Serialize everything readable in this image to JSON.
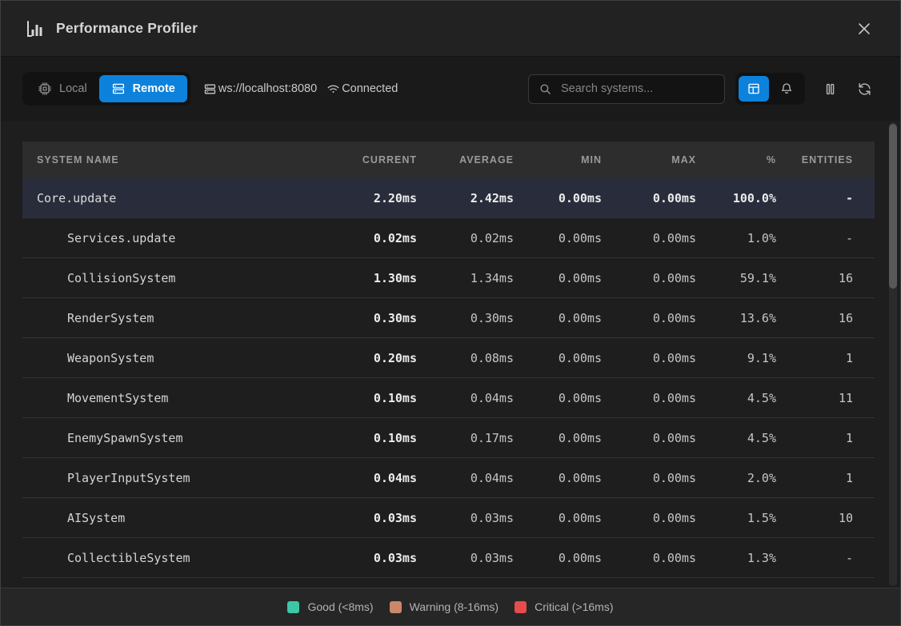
{
  "window": {
    "title": "Performance Profiler"
  },
  "toolbar": {
    "mode_toggle": {
      "local_label": "Local",
      "remote_label": "Remote",
      "active": "Remote"
    },
    "connection": {
      "url": "ws://localhost:8080",
      "status": "Connected"
    },
    "search": {
      "placeholder": "Search systems..."
    }
  },
  "table": {
    "columns": [
      "SYSTEM NAME",
      "CURRENT",
      "AVERAGE",
      "MIN",
      "MAX",
      "%",
      "ENTITIES"
    ],
    "rows": [
      {
        "name": "Core.update",
        "indent": 0,
        "highlighted": true,
        "current": "2.20ms",
        "average": "2.42ms",
        "min": "0.00ms",
        "max": "0.00ms",
        "percent": "100.0%",
        "entities": "-"
      },
      {
        "name": "Services.update",
        "indent": 1,
        "highlighted": false,
        "current": "0.02ms",
        "average": "0.02ms",
        "min": "0.00ms",
        "max": "0.00ms",
        "percent": "1.0%",
        "entities": "-"
      },
      {
        "name": "CollisionSystem",
        "indent": 1,
        "highlighted": false,
        "current": "1.30ms",
        "average": "1.34ms",
        "min": "0.00ms",
        "max": "0.00ms",
        "percent": "59.1%",
        "entities": "16"
      },
      {
        "name": "RenderSystem",
        "indent": 1,
        "highlighted": false,
        "current": "0.30ms",
        "average": "0.30ms",
        "min": "0.00ms",
        "max": "0.00ms",
        "percent": "13.6%",
        "entities": "16"
      },
      {
        "name": "WeaponSystem",
        "indent": 1,
        "highlighted": false,
        "current": "0.20ms",
        "average": "0.08ms",
        "min": "0.00ms",
        "max": "0.00ms",
        "percent": "9.1%",
        "entities": "1"
      },
      {
        "name": "MovementSystem",
        "indent": 1,
        "highlighted": false,
        "current": "0.10ms",
        "average": "0.04ms",
        "min": "0.00ms",
        "max": "0.00ms",
        "percent": "4.5%",
        "entities": "11"
      },
      {
        "name": "EnemySpawnSystem",
        "indent": 1,
        "highlighted": false,
        "current": "0.10ms",
        "average": "0.17ms",
        "min": "0.00ms",
        "max": "0.00ms",
        "percent": "4.5%",
        "entities": "1"
      },
      {
        "name": "PlayerInputSystem",
        "indent": 1,
        "highlighted": false,
        "current": "0.04ms",
        "average": "0.04ms",
        "min": "0.00ms",
        "max": "0.00ms",
        "percent": "2.0%",
        "entities": "1"
      },
      {
        "name": "AISystem",
        "indent": 1,
        "highlighted": false,
        "current": "0.03ms",
        "average": "0.03ms",
        "min": "0.00ms",
        "max": "0.00ms",
        "percent": "1.5%",
        "entities": "10"
      },
      {
        "name": "CollectibleSystem",
        "indent": 1,
        "highlighted": false,
        "current": "0.03ms",
        "average": "0.03ms",
        "min": "0.00ms",
        "max": "0.00ms",
        "percent": "1.3%",
        "entities": "-"
      }
    ]
  },
  "legend": {
    "items": [
      {
        "label": "Good (<8ms)",
        "color": "#3cc8a4"
      },
      {
        "label": "Warning (8-16ms)",
        "color": "#ca886a"
      },
      {
        "label": "Critical (>16ms)",
        "color": "#e74c4c"
      }
    ]
  },
  "colors": {
    "accent": "#0d82dc"
  }
}
